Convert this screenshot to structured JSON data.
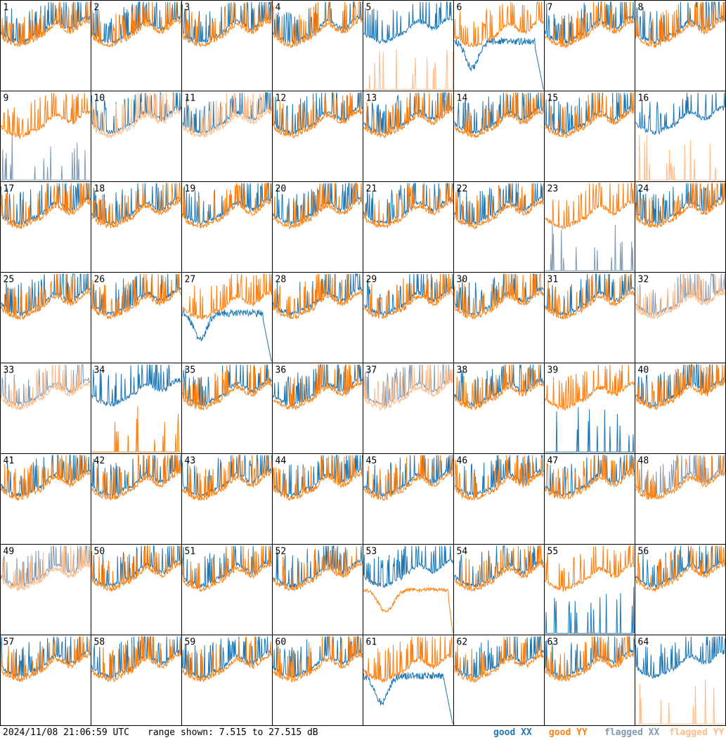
{
  "footer": {
    "timestamp": "2024/11/08 21:06:59 UTC",
    "range": "range shown: 7.515 to 27.515 dB",
    "legend": {
      "good_xx": "good XX",
      "good_yy": "good YY",
      "flagged_xx": "flagged XX",
      "flagged_yy": "flagged YY"
    }
  },
  "colors": {
    "good_xx": "#1f77b4",
    "good_yy": "#ff7f0e",
    "flagged_xx": "#8099b3",
    "flagged_yy": "#ffbb88"
  },
  "chart_data": {
    "type": "line",
    "ylim": [
      7.515,
      27.515
    ],
    "grid": "8x8",
    "panels": [
      {
        "label": "1",
        "xx": "good",
        "yy": "good",
        "profile": "normal"
      },
      {
        "label": "2",
        "xx": "good",
        "yy": "good",
        "profile": "normal"
      },
      {
        "label": "3",
        "xx": "good",
        "yy": "good",
        "profile": "normal"
      },
      {
        "label": "4",
        "xx": "good",
        "yy": "good",
        "profile": "normal"
      },
      {
        "label": "5",
        "xx": "good",
        "yy": "flagged",
        "profile": "yy-spikes"
      },
      {
        "label": "6",
        "xx": "good",
        "yy": "good",
        "profile": "xx-dip"
      },
      {
        "label": "7",
        "xx": "good",
        "yy": "good",
        "profile": "normal"
      },
      {
        "label": "8",
        "xx": "good",
        "yy": "good",
        "profile": "normal"
      },
      {
        "label": "9",
        "xx": "flagged",
        "yy": "good",
        "profile": "xx-spikes"
      },
      {
        "label": "10",
        "xx": "good",
        "yy": "flagged",
        "profile": "normal"
      },
      {
        "label": "11",
        "xx": "good",
        "yy": "flagged",
        "profile": "normal"
      },
      {
        "label": "12",
        "xx": "good",
        "yy": "good",
        "profile": "normal"
      },
      {
        "label": "13",
        "xx": "good",
        "yy": "good",
        "profile": "normal"
      },
      {
        "label": "14",
        "xx": "good",
        "yy": "good",
        "profile": "normal"
      },
      {
        "label": "15",
        "xx": "good",
        "yy": "good",
        "profile": "normal"
      },
      {
        "label": "16",
        "xx": "good",
        "yy": "flagged",
        "profile": "yy-spikes"
      },
      {
        "label": "17",
        "xx": "good",
        "yy": "good",
        "profile": "normal"
      },
      {
        "label": "18",
        "xx": "good",
        "yy": "good",
        "profile": "normal"
      },
      {
        "label": "19",
        "xx": "good",
        "yy": "good",
        "profile": "normal"
      },
      {
        "label": "20",
        "xx": "good",
        "yy": "good",
        "profile": "normal"
      },
      {
        "label": "21",
        "xx": "good",
        "yy": "good",
        "profile": "normal"
      },
      {
        "label": "22",
        "xx": "good",
        "yy": "good",
        "profile": "normal"
      },
      {
        "label": "23",
        "xx": "flagged",
        "yy": "good",
        "profile": "xx-noisy"
      },
      {
        "label": "24",
        "xx": "good",
        "yy": "good",
        "profile": "normal"
      },
      {
        "label": "25",
        "xx": "good",
        "yy": "good",
        "profile": "normal"
      },
      {
        "label": "26",
        "xx": "good",
        "yy": "good",
        "profile": "normal"
      },
      {
        "label": "27",
        "xx": "good",
        "yy": "good",
        "profile": "xx-dip"
      },
      {
        "label": "28",
        "xx": "good",
        "yy": "good",
        "profile": "normal"
      },
      {
        "label": "29",
        "xx": "good",
        "yy": "good",
        "profile": "normal"
      },
      {
        "label": "30",
        "xx": "good",
        "yy": "good",
        "profile": "normal"
      },
      {
        "label": "31",
        "xx": "good",
        "yy": "good",
        "profile": "normal"
      },
      {
        "label": "32",
        "xx": "flagged",
        "yy": "flagged",
        "profile": "normal"
      },
      {
        "label": "33",
        "xx": "flagged",
        "yy": "flagged",
        "profile": "normal"
      },
      {
        "label": "34",
        "xx": "good",
        "yy": "good",
        "profile": "yy-spikes"
      },
      {
        "label": "35",
        "xx": "good",
        "yy": "good",
        "profile": "normal"
      },
      {
        "label": "36",
        "xx": "good",
        "yy": "good",
        "profile": "normal"
      },
      {
        "label": "37",
        "xx": "flagged",
        "yy": "flagged",
        "profile": "normal"
      },
      {
        "label": "38",
        "xx": "good",
        "yy": "good",
        "profile": "normal"
      },
      {
        "label": "39",
        "xx": "good",
        "yy": "good",
        "profile": "xx-spikes"
      },
      {
        "label": "40",
        "xx": "good",
        "yy": "good",
        "profile": "normal"
      },
      {
        "label": "41",
        "xx": "good",
        "yy": "good",
        "profile": "normal"
      },
      {
        "label": "42",
        "xx": "good",
        "yy": "good",
        "profile": "normal"
      },
      {
        "label": "43",
        "xx": "good",
        "yy": "good",
        "profile": "normal"
      },
      {
        "label": "44",
        "xx": "good",
        "yy": "good",
        "profile": "normal"
      },
      {
        "label": "45",
        "xx": "good",
        "yy": "good",
        "profile": "normal"
      },
      {
        "label": "46",
        "xx": "good",
        "yy": "good",
        "profile": "normal"
      },
      {
        "label": "47",
        "xx": "good",
        "yy": "good",
        "profile": "normal"
      },
      {
        "label": "48",
        "xx": "flagged",
        "yy": "good",
        "profile": "normal"
      },
      {
        "label": "49",
        "xx": "flagged",
        "yy": "flagged",
        "profile": "normal"
      },
      {
        "label": "50",
        "xx": "good",
        "yy": "good",
        "profile": "normal"
      },
      {
        "label": "51",
        "xx": "good",
        "yy": "good",
        "profile": "normal"
      },
      {
        "label": "52",
        "xx": "good",
        "yy": "good",
        "profile": "normal"
      },
      {
        "label": "53",
        "xx": "good",
        "yy": "good",
        "profile": "yy-dip"
      },
      {
        "label": "54",
        "xx": "good",
        "yy": "good",
        "profile": "normal"
      },
      {
        "label": "55",
        "xx": "good",
        "yy": "good",
        "profile": "xx-spikes"
      },
      {
        "label": "56",
        "xx": "good",
        "yy": "good",
        "profile": "normal"
      },
      {
        "label": "57",
        "xx": "good",
        "yy": "good",
        "profile": "normal"
      },
      {
        "label": "58",
        "xx": "good",
        "yy": "good",
        "profile": "normal"
      },
      {
        "label": "59",
        "xx": "good",
        "yy": "good",
        "profile": "normal"
      },
      {
        "label": "60",
        "xx": "good",
        "yy": "good",
        "profile": "normal"
      },
      {
        "label": "61",
        "xx": "good",
        "yy": "good",
        "profile": "xx-dip"
      },
      {
        "label": "62",
        "xx": "good",
        "yy": "good",
        "profile": "normal"
      },
      {
        "label": "63",
        "xx": "good",
        "yy": "good",
        "profile": "normal"
      },
      {
        "label": "64",
        "xx": "good",
        "yy": "flagged",
        "profile": "yy-spikes"
      }
    ]
  }
}
